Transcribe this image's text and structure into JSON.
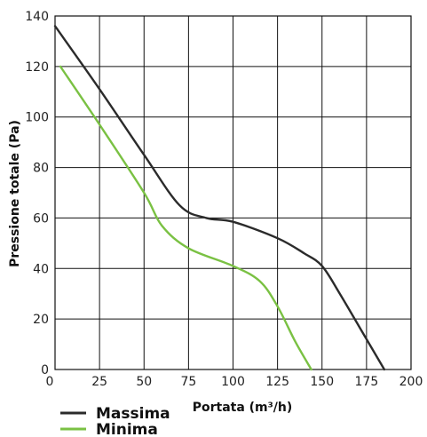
{
  "chart_data": {
    "type": "line",
    "xlabel": "Portata (m³/h)",
    "ylabel": "Pressione totale (Pa)",
    "xlim": [
      0,
      200
    ],
    "ylim": [
      0,
      140
    ],
    "x_ticks": [
      "0",
      "25",
      "50",
      "75",
      "100",
      "125",
      "150",
      "175",
      "200"
    ],
    "y_ticks": [
      "0",
      "20",
      "40",
      "60",
      "80",
      "100",
      "120",
      "140"
    ],
    "grid": true,
    "legend_position": "bottom-left",
    "series": [
      {
        "name": "Massima",
        "color": "#2b2b2b",
        "x": [
          0,
          25,
          50,
          70,
          85,
          100,
          125,
          140,
          150,
          160,
          175,
          185
        ],
        "y": [
          136,
          111,
          85,
          65,
          60,
          58.5,
          52,
          46,
          41,
          30,
          12,
          0
        ]
      },
      {
        "name": "Minima",
        "color": "#7ac143",
        "x": [
          3,
          25,
          50,
          60,
          75,
          100,
          115,
          125,
          135,
          144
        ],
        "y": [
          120,
          97,
          70,
          57,
          48,
          41,
          35,
          25,
          11,
          0
        ]
      }
    ]
  }
}
